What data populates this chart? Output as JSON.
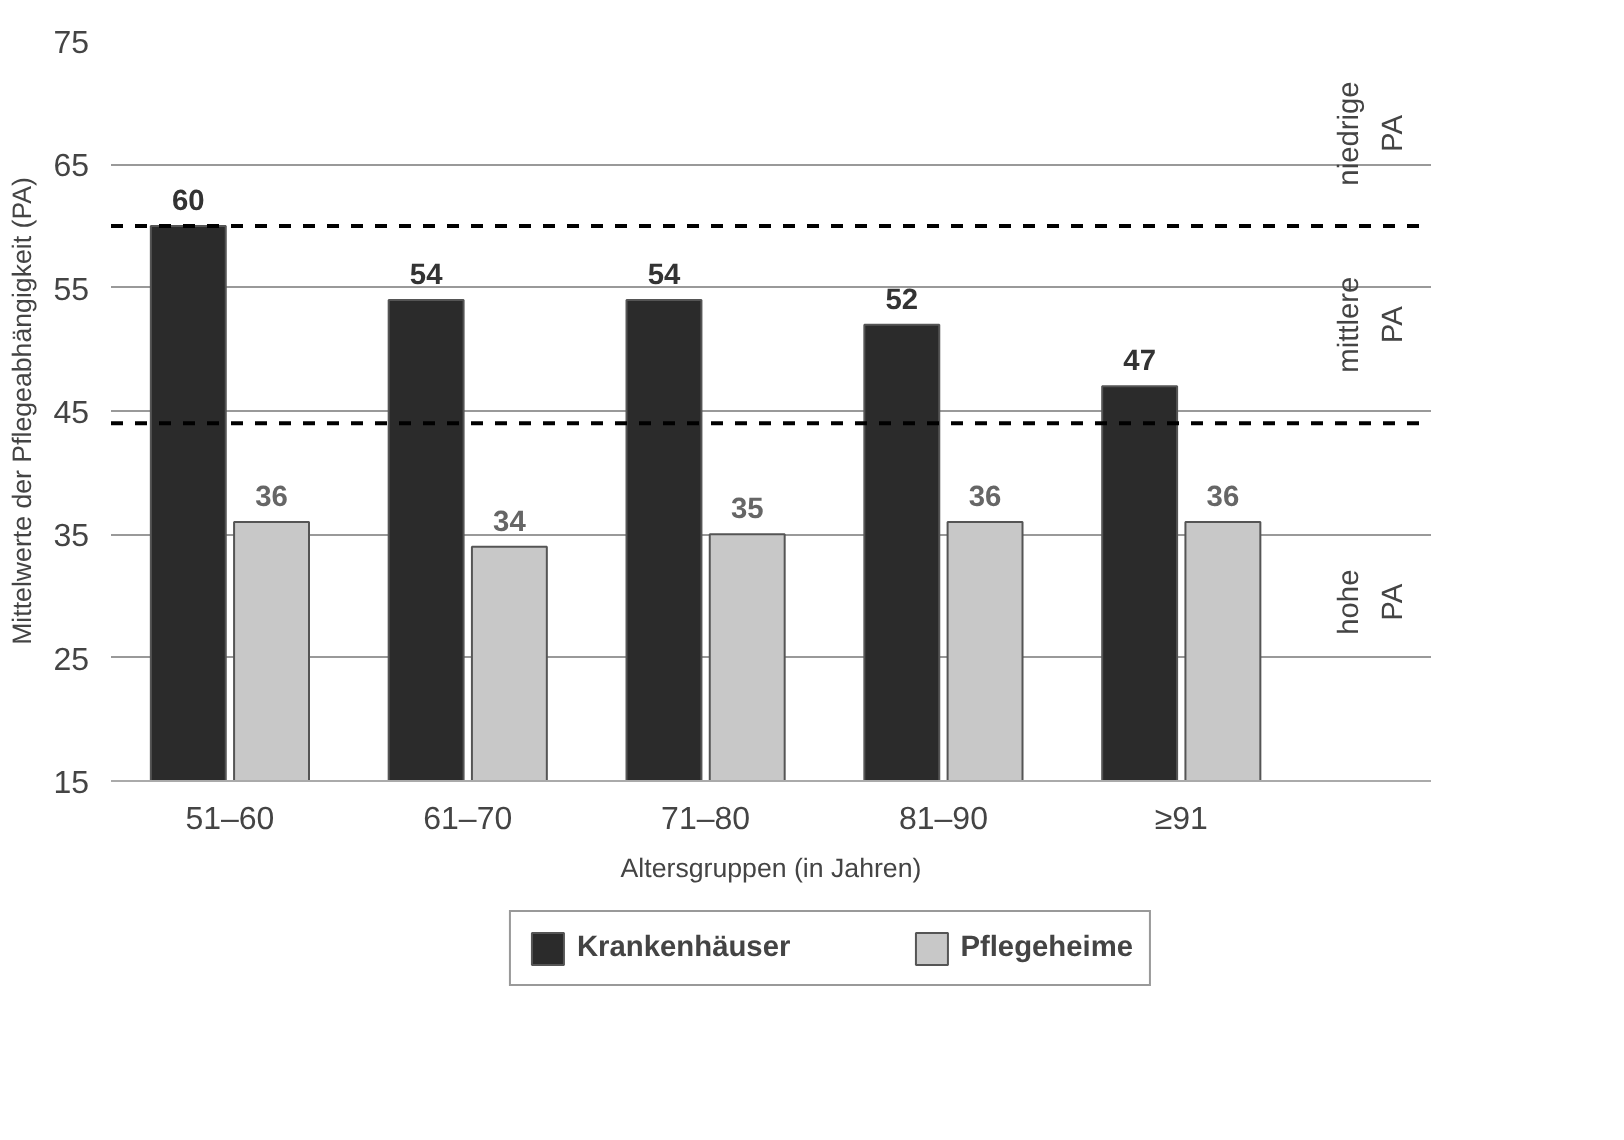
{
  "chart_data": {
    "type": "bar",
    "xlabel": "Altersgruppen (in Jahren)",
    "ylabel": "Mittelwerte der Pflegeabhängigkeit (PA)",
    "categories": [
      "51–60",
      "61–70",
      "71–80",
      "81–90",
      "≥91"
    ],
    "series": [
      {
        "name": "Krankenhäuser",
        "color": "#2b2b2b",
        "values": [
          60,
          54,
          54,
          52,
          47
        ]
      },
      {
        "name": "Pflegeheime",
        "color": "#c8c8c8",
        "values": [
          36,
          34,
          35,
          36,
          36
        ]
      }
    ],
    "ylim": [
      15,
      75
    ],
    "yticks": [
      15,
      25,
      35,
      45,
      55,
      65,
      75
    ],
    "grid": "y",
    "data_labels": true,
    "legend": "bottom",
    "ref_lines": [
      {
        "axis": "y",
        "value": 60,
        "line_style": "dashed",
        "color": "#000000"
      },
      {
        "axis": "y",
        "value": 44,
        "line_style": "dashed",
        "color": "#000000"
      }
    ],
    "annotations": [
      "niedrige PA",
      "mittlere PA",
      "hohe PA"
    ]
  }
}
